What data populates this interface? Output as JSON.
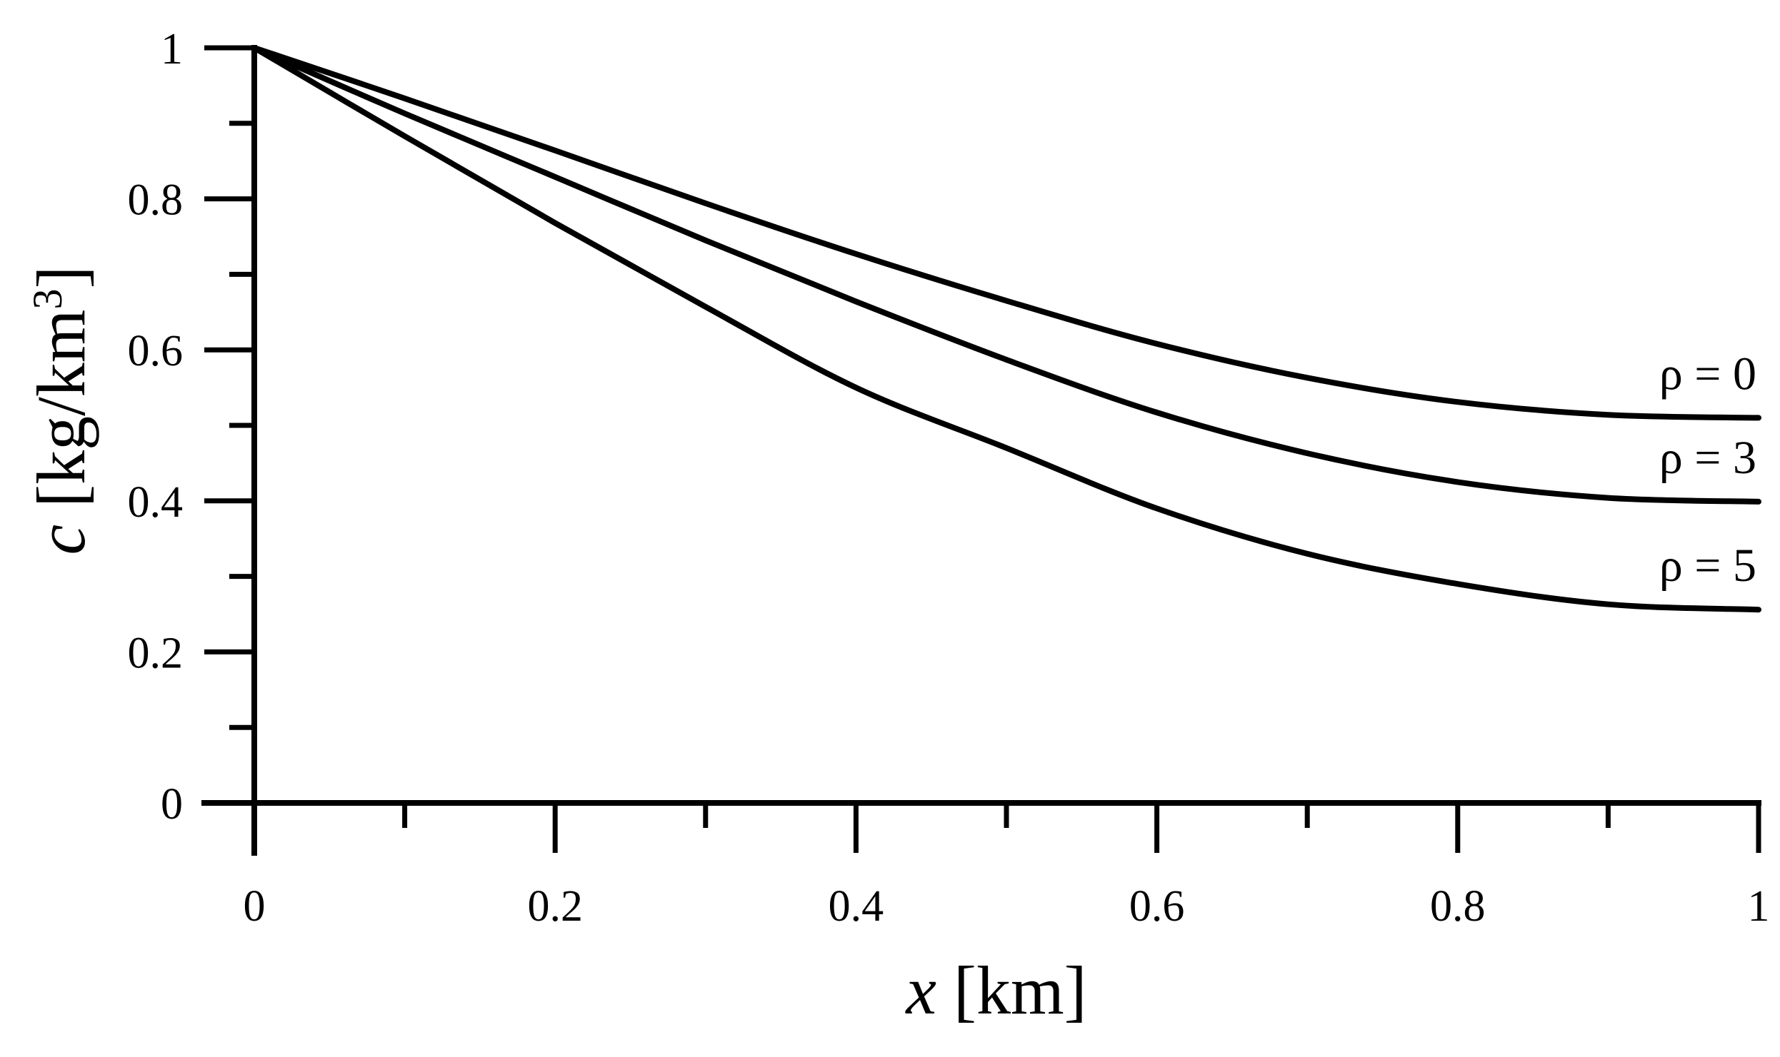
{
  "chart_data": {
    "type": "line",
    "xlabel_var": "x",
    "xlabel_unit": " [km]",
    "ylabel_var": "c",
    "ylabel_unit_pre": " [kg/km",
    "ylabel_unit_sup": "3",
    "ylabel_unit_post": "]",
    "xlim": [
      0,
      1
    ],
    "ylim": [
      0,
      1
    ],
    "x_ticks": [
      0,
      0.2,
      0.4,
      0.6,
      0.8,
      1
    ],
    "x_tick_labels": [
      "0",
      "0.2",
      "0.4",
      "0.6",
      "0.8",
      "1"
    ],
    "x_minor_ticks": [
      0.1,
      0.3,
      0.5,
      0.7,
      0.9
    ],
    "y_ticks": [
      0,
      0.2,
      0.4,
      0.6,
      0.8,
      1
    ],
    "y_tick_labels": [
      "0",
      "0.2",
      "0.4",
      "0.6",
      "0.8",
      "1"
    ],
    "y_minor_ticks": [
      0.1,
      0.3,
      0.5,
      0.7,
      0.9
    ],
    "grid": false,
    "legend": "none",
    "x": [
      0,
      0.1,
      0.2,
      0.3,
      0.4,
      0.5,
      0.6,
      0.7,
      0.8,
      0.9,
      1.0
    ],
    "series": [
      {
        "name": "ρ = 0",
        "values": [
          1.0,
          0.933,
          0.864,
          0.794,
          0.727,
          0.665,
          0.608,
          0.563,
          0.531,
          0.514,
          0.51
        ]
      },
      {
        "name": "ρ = 3",
        "values": [
          1.0,
          0.913,
          0.829,
          0.745,
          0.664,
          0.587,
          0.517,
          0.463,
          0.425,
          0.404,
          0.399
        ]
      },
      {
        "name": "ρ = 5",
        "values": [
          1.0,
          0.883,
          0.768,
          0.657,
          0.55,
          0.47,
          0.39,
          0.33,
          0.29,
          0.263,
          0.256
        ]
      }
    ]
  }
}
